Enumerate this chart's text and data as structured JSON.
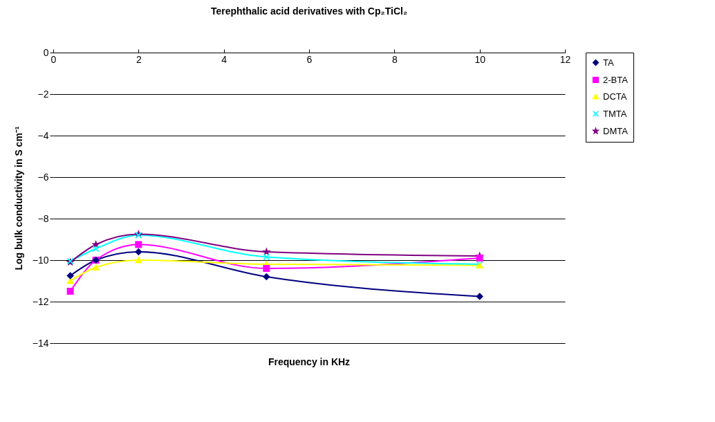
{
  "chart_data": {
    "type": "line",
    "title": "Terephthalic acid derivatives with Cp₂TiCl₂",
    "xlabel": "Frequency in KHz",
    "ylabel": "Log bulk conductivity in S cm⁻¹",
    "x": [
      0.4,
      1,
      2,
      5,
      10
    ],
    "xlim": [
      0,
      12
    ],
    "xticks": [
      0,
      2,
      4,
      6,
      8,
      10,
      12
    ],
    "ylim": [
      -14,
      0
    ],
    "yticks": [
      -14,
      -12,
      -10,
      -8,
      -6,
      -4,
      -2,
      0
    ],
    "grid": "y",
    "legend": "right",
    "series": [
      {
        "name": "TA",
        "color": "#000080",
        "marker": "diamond",
        "values": [
          -10.75,
          -10.0,
          -9.6,
          -10.8,
          -11.75
        ]
      },
      {
        "name": "2-BTA",
        "color": "#ff00ff",
        "marker": "square",
        "values": [
          -11.5,
          -10.0,
          -9.25,
          -10.4,
          -9.9
        ]
      },
      {
        "name": "DCTA",
        "color": "#ffff00",
        "marker": "triangle",
        "values": [
          -11.0,
          -10.35,
          -10.0,
          -10.2,
          -10.25
        ]
      },
      {
        "name": "TMTA",
        "color": "#00ffff",
        "marker": "cross",
        "values": [
          -10.05,
          -9.45,
          -8.8,
          -9.85,
          -10.2
        ]
      },
      {
        "name": "DMTA",
        "color": "#800080",
        "marker": "star",
        "values": [
          -10.1,
          -9.25,
          -8.75,
          -9.6,
          -9.8
        ]
      }
    ]
  }
}
